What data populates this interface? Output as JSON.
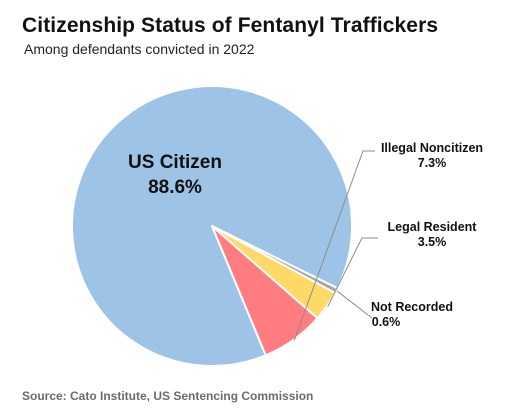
{
  "title": "Citizenship Status of Fentanyl Traffickers",
  "subtitle": "Among defendants convicted in 2022",
  "source": "Source: Cato Institute, US Sentencing Commission",
  "chart_data": {
    "type": "pie",
    "title": "Citizenship Status of Fentanyl Traffickers",
    "subtitle": "Among defendants convicted in 2022",
    "slices": [
      {
        "label": "US Citizen",
        "display": "88.6%",
        "value": 88.6,
        "color": "#9dc3e6",
        "label_position": "inside"
      },
      {
        "label": "Illegal Noncitizen",
        "display": "7.3%",
        "value": 7.3,
        "color": "#ff7c80",
        "label_position": "outside"
      },
      {
        "label": "Legal Resident",
        "display": "3.5%",
        "value": 3.5,
        "color": "#ffd966",
        "label_position": "outside"
      },
      {
        "label": "Not Recorded",
        "display": "0.6%",
        "value": 0.6,
        "color": "#a6a6a6",
        "label_position": "outside"
      }
    ]
  }
}
